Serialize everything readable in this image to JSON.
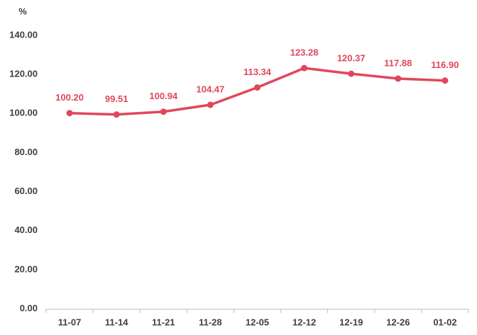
{
  "chart_data": {
    "type": "line",
    "y_unit": "%",
    "categories": [
      "11-07",
      "11-14",
      "11-21",
      "11-28",
      "12-05",
      "12-12",
      "12-19",
      "12-26",
      "01-02"
    ],
    "values": [
      100.2,
      99.51,
      100.94,
      104.47,
      113.34,
      123.28,
      120.37,
      117.88,
      116.9
    ],
    "value_labels": [
      "100.20",
      "99.51",
      "100.94",
      "104.47",
      "113.34",
      "123.28",
      "120.37",
      "117.88",
      "116.90"
    ],
    "color": "#e0475a",
    "ylim": [
      0,
      140
    ],
    "yticks": [
      {
        "value": 0,
        "label": "0.00"
      },
      {
        "value": 20,
        "label": "20.00"
      },
      {
        "value": 40,
        "label": "40.00"
      },
      {
        "value": 60,
        "label": "60.00"
      },
      {
        "value": 80,
        "label": "80.00"
      },
      {
        "value": 100,
        "label": "100.00"
      },
      {
        "value": 120,
        "label": "120.00"
      },
      {
        "value": 140,
        "label": "140.00"
      }
    ],
    "grid": false
  }
}
